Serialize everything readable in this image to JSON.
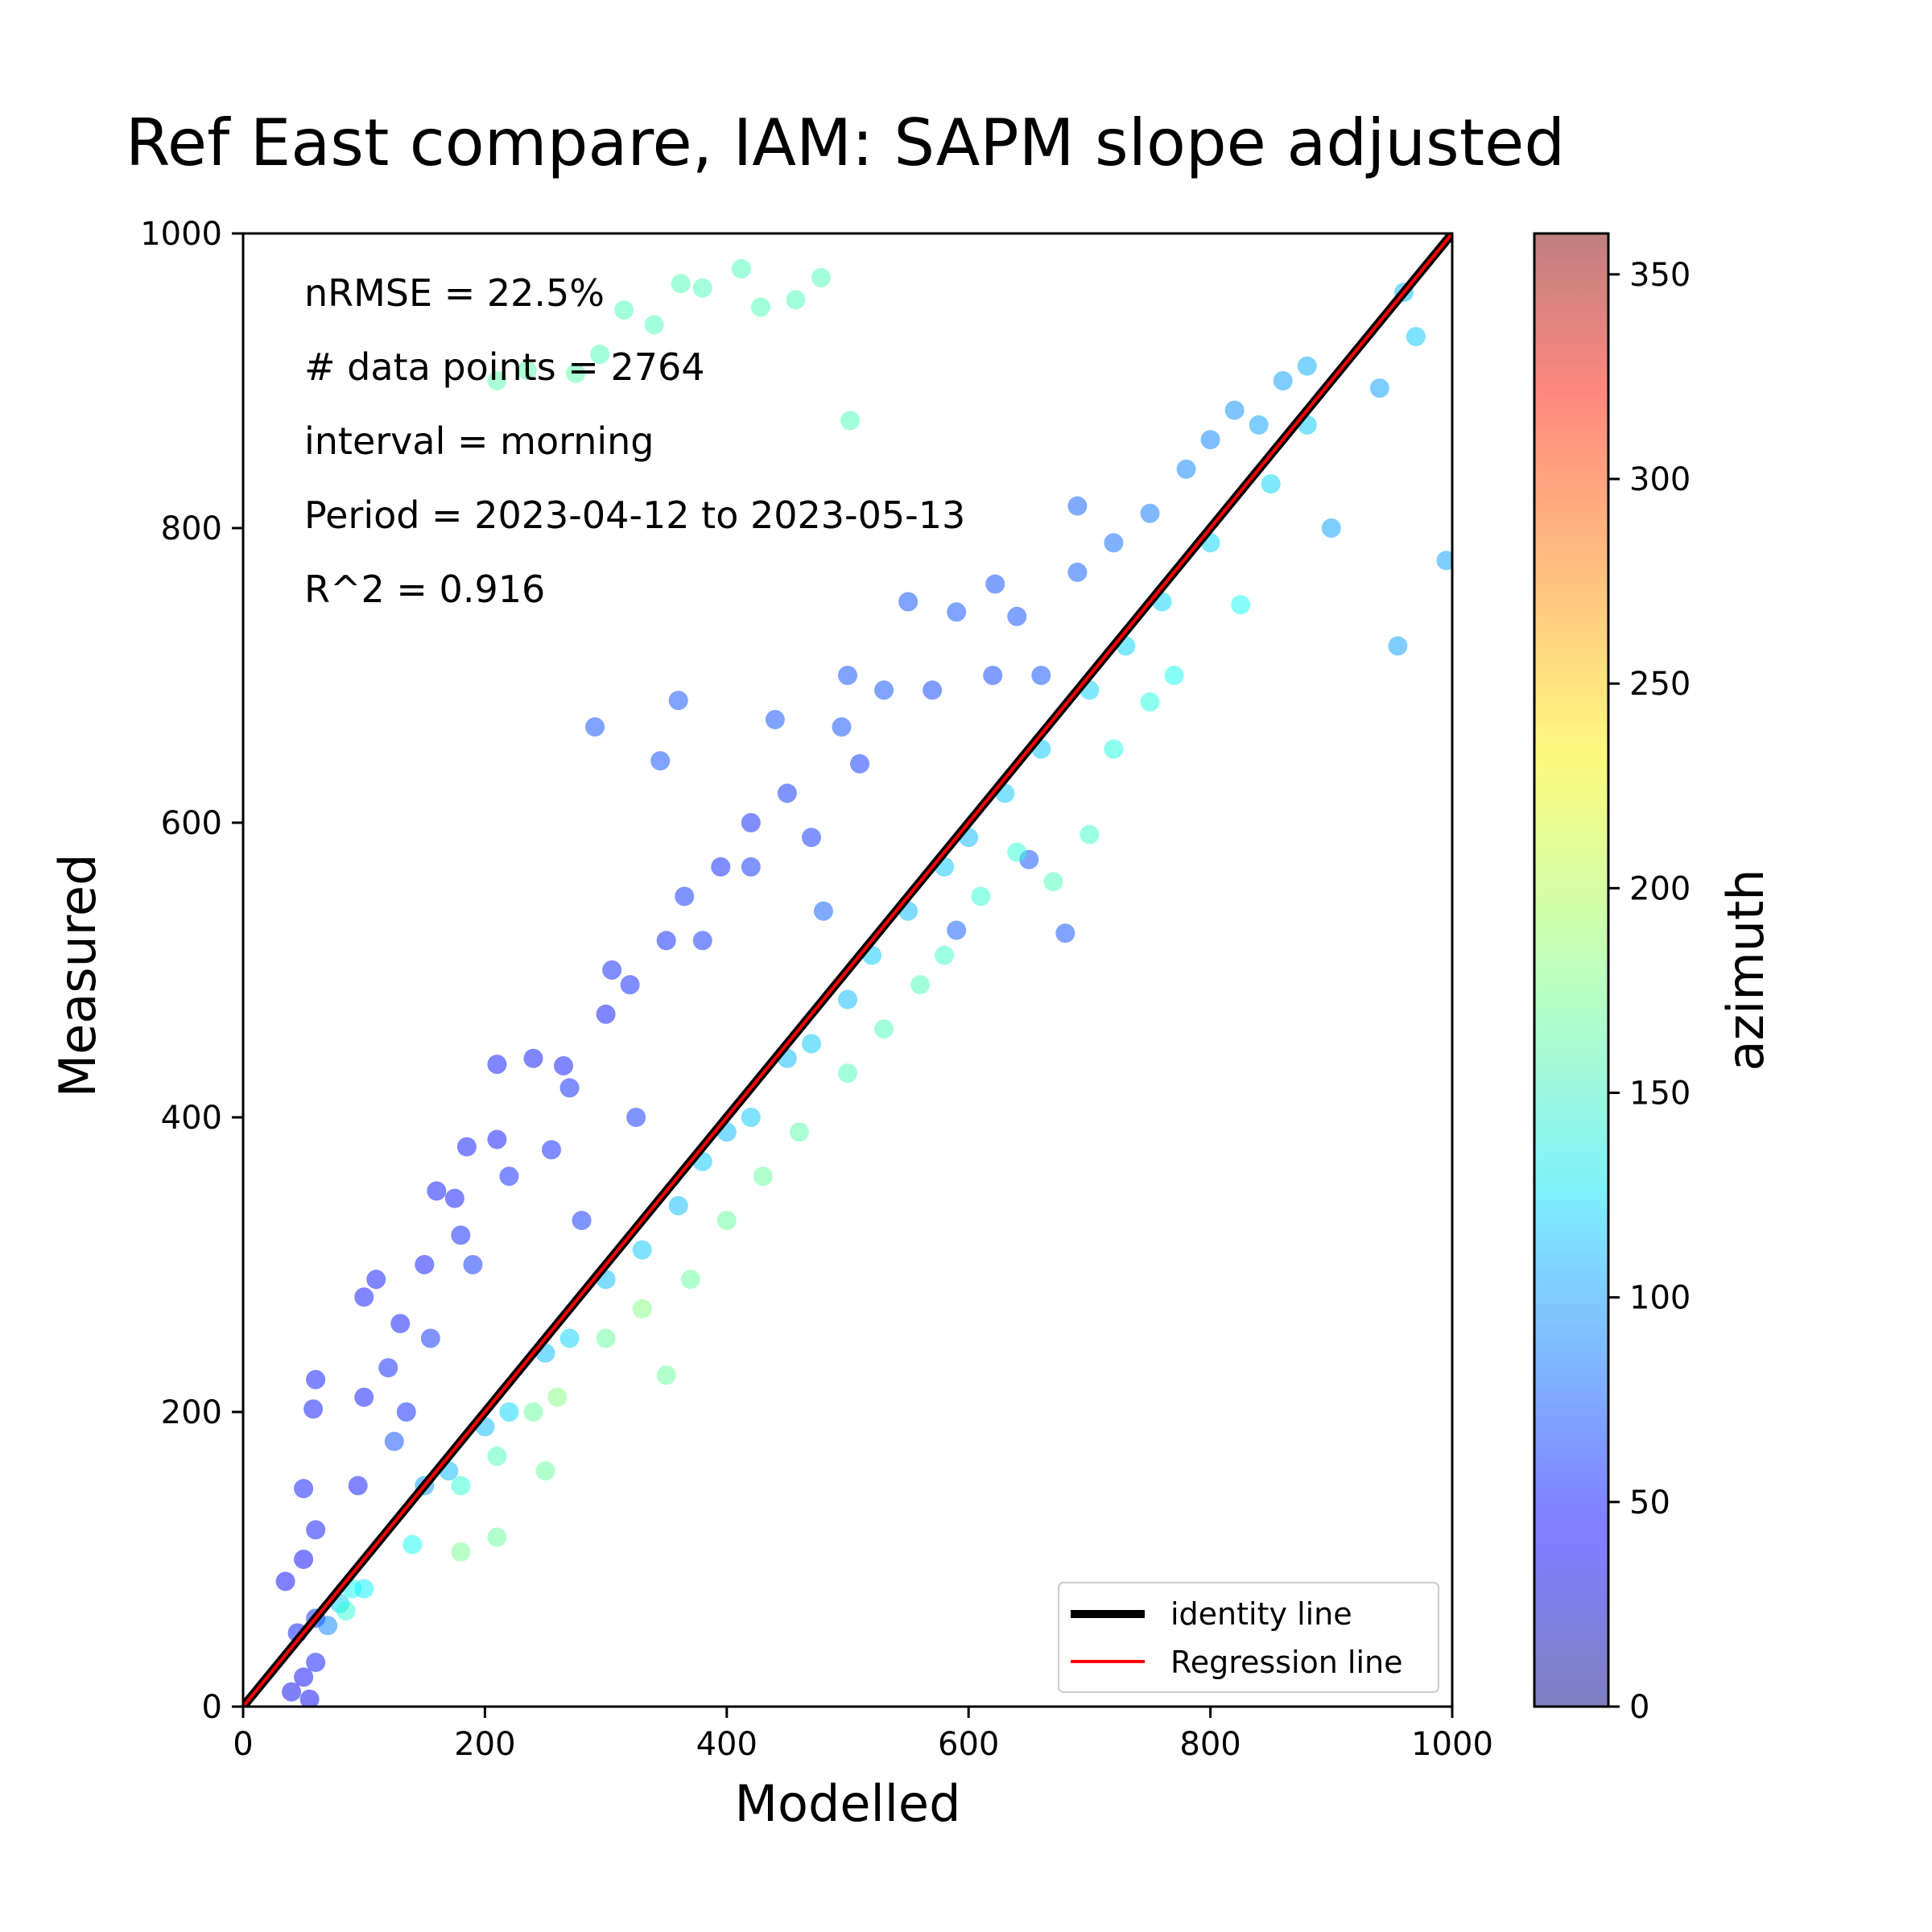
{
  "chart_data": {
    "type": "scatter",
    "title": "Ref East compare, IAM: SAPM slope adjusted",
    "xlabel": "Modelled",
    "ylabel": "Measured",
    "xlim": [
      0,
      1000
    ],
    "ylim": [
      0,
      1000
    ],
    "xticks": [
      "0",
      "200",
      "400",
      "600",
      "800",
      "1000"
    ],
    "yticks": [
      "0",
      "200",
      "400",
      "600",
      "800",
      "1000"
    ],
    "grid": false,
    "annotations": [
      "nRMSE = 22.5%",
      "# data points = 2764",
      "interval = morning",
      "Period = 2023-04-12 to 2023-05-13",
      "R^2 = 0.916"
    ],
    "legend": {
      "placement": "lower-right",
      "entries": [
        {
          "label": "identity line",
          "color": "#000000"
        },
        {
          "label": "Regression line",
          "color": "#ff0000"
        }
      ]
    },
    "lines": [
      {
        "name": "identity line",
        "color": "#000000",
        "x": [
          0,
          1000
        ],
        "y": [
          0,
          1000
        ]
      },
      {
        "name": "Regression line",
        "color": "#ff0000",
        "x": [
          0,
          1000
        ],
        "y": [
          0,
          1000
        ]
      }
    ],
    "colorbar": {
      "label": "azimuth",
      "range": [
        0,
        360
      ],
      "ticks": [
        "0",
        "50",
        "100",
        "150",
        "200",
        "250",
        "300",
        "350"
      ],
      "colormap": "jet",
      "alpha": 0.5
    },
    "points": [
      {
        "x": 40,
        "y": 10,
        "az": 40
      },
      {
        "x": 50,
        "y": 20,
        "az": 45
      },
      {
        "x": 55,
        "y": 5,
        "az": 40
      },
      {
        "x": 60,
        "y": 30,
        "az": 50
      },
      {
        "x": 45,
        "y": 50,
        "az": 50
      },
      {
        "x": 60,
        "y": 60,
        "az": 60
      },
      {
        "x": 70,
        "y": 55,
        "az": 90
      },
      {
        "x": 80,
        "y": 70,
        "az": 120
      },
      {
        "x": 90,
        "y": 80,
        "az": 140
      },
      {
        "x": 85,
        "y": 65,
        "az": 150
      },
      {
        "x": 35,
        "y": 85,
        "az": 45
      },
      {
        "x": 50,
        "y": 100,
        "az": 45
      },
      {
        "x": 60,
        "y": 120,
        "az": 50
      },
      {
        "x": 50,
        "y": 148,
        "az": 50
      },
      {
        "x": 60,
        "y": 222,
        "az": 50
      },
      {
        "x": 58,
        "y": 202,
        "az": 50
      },
      {
        "x": 95,
        "y": 150,
        "az": 50
      },
      {
        "x": 100,
        "y": 210,
        "az": 50
      },
      {
        "x": 110,
        "y": 290,
        "az": 50
      },
      {
        "x": 100,
        "y": 278,
        "az": 50
      },
      {
        "x": 120,
        "y": 230,
        "az": 55
      },
      {
        "x": 125,
        "y": 180,
        "az": 70
      },
      {
        "x": 130,
        "y": 260,
        "az": 50
      },
      {
        "x": 135,
        "y": 200,
        "az": 55
      },
      {
        "x": 150,
        "y": 300,
        "az": 50
      },
      {
        "x": 155,
        "y": 250,
        "az": 60
      },
      {
        "x": 160,
        "y": 350,
        "az": 50
      },
      {
        "x": 175,
        "y": 345,
        "az": 50
      },
      {
        "x": 180,
        "y": 320,
        "az": 55
      },
      {
        "x": 185,
        "y": 380,
        "az": 50
      },
      {
        "x": 190,
        "y": 300,
        "az": 60
      },
      {
        "x": 210,
        "y": 385,
        "az": 50
      },
      {
        "x": 210,
        "y": 436,
        "az": 50
      },
      {
        "x": 220,
        "y": 360,
        "az": 55
      },
      {
        "x": 240,
        "y": 440,
        "az": 50
      },
      {
        "x": 255,
        "y": 378,
        "az": 55
      },
      {
        "x": 265,
        "y": 435,
        "az": 50
      },
      {
        "x": 270,
        "y": 420,
        "az": 55
      },
      {
        "x": 280,
        "y": 330,
        "az": 60
      },
      {
        "x": 291,
        "y": 665,
        "az": 70
      },
      {
        "x": 300,
        "y": 470,
        "az": 50
      },
      {
        "x": 305,
        "y": 500,
        "az": 55
      },
      {
        "x": 320,
        "y": 490,
        "az": 55
      },
      {
        "x": 325,
        "y": 400,
        "az": 60
      },
      {
        "x": 345,
        "y": 642,
        "az": 70
      },
      {
        "x": 360,
        "y": 683,
        "az": 70
      },
      {
        "x": 350,
        "y": 520,
        "az": 55
      },
      {
        "x": 365,
        "y": 550,
        "az": 60
      },
      {
        "x": 380,
        "y": 520,
        "az": 60
      },
      {
        "x": 395,
        "y": 570,
        "az": 55
      },
      {
        "x": 420,
        "y": 600,
        "az": 55
      },
      {
        "x": 420,
        "y": 570,
        "az": 60
      },
      {
        "x": 440,
        "y": 670,
        "az": 70
      },
      {
        "x": 450,
        "y": 620,
        "az": 60
      },
      {
        "x": 470,
        "y": 590,
        "az": 60
      },
      {
        "x": 480,
        "y": 540,
        "az": 75
      },
      {
        "x": 495,
        "y": 665,
        "az": 70
      },
      {
        "x": 500,
        "y": 700,
        "az": 70
      },
      {
        "x": 510,
        "y": 640,
        "az": 60
      },
      {
        "x": 530,
        "y": 690,
        "az": 70
      },
      {
        "x": 550,
        "y": 750,
        "az": 70
      },
      {
        "x": 570,
        "y": 690,
        "az": 65
      },
      {
        "x": 590,
        "y": 743,
        "az": 70
      },
      {
        "x": 590,
        "y": 527,
        "az": 75
      },
      {
        "x": 620,
        "y": 700,
        "az": 65
      },
      {
        "x": 622,
        "y": 762,
        "az": 70
      },
      {
        "x": 640,
        "y": 740,
        "az": 70
      },
      {
        "x": 650,
        "y": 575,
        "az": 70
      },
      {
        "x": 660,
        "y": 700,
        "az": 70
      },
      {
        "x": 680,
        "y": 525,
        "az": 70
      },
      {
        "x": 690,
        "y": 770,
        "az": 75
      },
      {
        "x": 690,
        "y": 815,
        "az": 75
      },
      {
        "x": 720,
        "y": 790,
        "az": 80
      },
      {
        "x": 750,
        "y": 810,
        "az": 85
      },
      {
        "x": 780,
        "y": 840,
        "az": 90
      },
      {
        "x": 800,
        "y": 860,
        "az": 90
      },
      {
        "x": 820,
        "y": 880,
        "az": 95
      },
      {
        "x": 840,
        "y": 870,
        "az": 100
      },
      {
        "x": 860,
        "y": 900,
        "az": 100
      },
      {
        "x": 880,
        "y": 910,
        "az": 105
      },
      {
        "x": 900,
        "y": 800,
        "az": 100
      },
      {
        "x": 940,
        "y": 895,
        "az": 100
      },
      {
        "x": 955,
        "y": 720,
        "az": 100
      },
      {
        "x": 995,
        "y": 778,
        "az": 100
      },
      {
        "x": 960,
        "y": 960,
        "az": 110
      },
      {
        "x": 970,
        "y": 930,
        "az": 115
      },
      {
        "x": 150,
        "y": 150,
        "az": 100
      },
      {
        "x": 170,
        "y": 160,
        "az": 110
      },
      {
        "x": 200,
        "y": 190,
        "az": 110
      },
      {
        "x": 220,
        "y": 200,
        "az": 120
      },
      {
        "x": 250,
        "y": 240,
        "az": 110
      },
      {
        "x": 270,
        "y": 250,
        "az": 120
      },
      {
        "x": 300,
        "y": 290,
        "az": 110
      },
      {
        "x": 330,
        "y": 310,
        "az": 115
      },
      {
        "x": 360,
        "y": 340,
        "az": 110
      },
      {
        "x": 380,
        "y": 370,
        "az": 115
      },
      {
        "x": 400,
        "y": 390,
        "az": 110
      },
      {
        "x": 420,
        "y": 400,
        "az": 115
      },
      {
        "x": 450,
        "y": 440,
        "az": 110
      },
      {
        "x": 470,
        "y": 450,
        "az": 115
      },
      {
        "x": 500,
        "y": 480,
        "az": 110
      },
      {
        "x": 520,
        "y": 510,
        "az": 115
      },
      {
        "x": 550,
        "y": 540,
        "az": 110
      },
      {
        "x": 580,
        "y": 570,
        "az": 115
      },
      {
        "x": 600,
        "y": 590,
        "az": 110
      },
      {
        "x": 630,
        "y": 620,
        "az": 115
      },
      {
        "x": 660,
        "y": 650,
        "az": 115
      },
      {
        "x": 700,
        "y": 690,
        "az": 120
      },
      {
        "x": 730,
        "y": 720,
        "az": 120
      },
      {
        "x": 760,
        "y": 750,
        "az": 120
      },
      {
        "x": 800,
        "y": 790,
        "az": 120
      },
      {
        "x": 825,
        "y": 748,
        "az": 140
      },
      {
        "x": 850,
        "y": 830,
        "az": 120
      },
      {
        "x": 880,
        "y": 870,
        "az": 115
      },
      {
        "x": 100,
        "y": 80,
        "az": 130
      },
      {
        "x": 140,
        "y": 110,
        "az": 140
      },
      {
        "x": 180,
        "y": 150,
        "az": 150
      },
      {
        "x": 210,
        "y": 170,
        "az": 160
      },
      {
        "x": 240,
        "y": 200,
        "az": 170
      },
      {
        "x": 260,
        "y": 210,
        "az": 180
      },
      {
        "x": 300,
        "y": 250,
        "az": 170
      },
      {
        "x": 330,
        "y": 270,
        "az": 180
      },
      {
        "x": 350,
        "y": 225,
        "az": 170
      },
      {
        "x": 370,
        "y": 290,
        "az": 170
      },
      {
        "x": 400,
        "y": 330,
        "az": 170
      },
      {
        "x": 430,
        "y": 360,
        "az": 170
      },
      {
        "x": 460,
        "y": 390,
        "az": 165
      },
      {
        "x": 500,
        "y": 430,
        "az": 160
      },
      {
        "x": 530,
        "y": 460,
        "az": 160
      },
      {
        "x": 560,
        "y": 490,
        "az": 160
      },
      {
        "x": 580,
        "y": 510,
        "az": 155
      },
      {
        "x": 610,
        "y": 550,
        "az": 150
      },
      {
        "x": 640,
        "y": 580,
        "az": 150
      },
      {
        "x": 670,
        "y": 560,
        "az": 160
      },
      {
        "x": 700,
        "y": 592,
        "az": 155
      },
      {
        "x": 720,
        "y": 650,
        "az": 145
      },
      {
        "x": 750,
        "y": 682,
        "az": 145
      },
      {
        "x": 770,
        "y": 700,
        "az": 140
      },
      {
        "x": 210,
        "y": 115,
        "az": 170
      },
      {
        "x": 180,
        "y": 105,
        "az": 175
      },
      {
        "x": 250,
        "y": 160,
        "az": 170
      },
      {
        "x": 210,
        "y": 900,
        "az": 165
      },
      {
        "x": 235,
        "y": 907,
        "az": 165
      },
      {
        "x": 275,
        "y": 905,
        "az": 165
      },
      {
        "x": 295,
        "y": 918,
        "az": 160
      },
      {
        "x": 315,
        "y": 948,
        "az": 160
      },
      {
        "x": 340,
        "y": 938,
        "az": 160
      },
      {
        "x": 362,
        "y": 966,
        "az": 160
      },
      {
        "x": 380,
        "y": 963,
        "az": 160
      },
      {
        "x": 412,
        "y": 976,
        "az": 160
      },
      {
        "x": 428,
        "y": 950,
        "az": 160
      },
      {
        "x": 457,
        "y": 955,
        "az": 160
      },
      {
        "x": 478,
        "y": 970,
        "az": 160
      },
      {
        "x": 502,
        "y": 873,
        "az": 160
      }
    ]
  }
}
